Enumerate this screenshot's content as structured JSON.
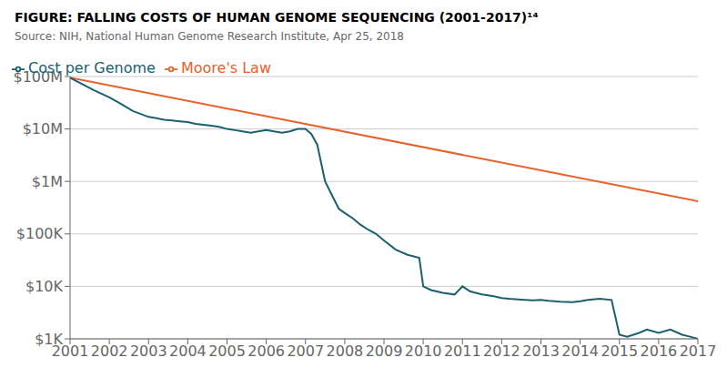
{
  "chart_data": {
    "type": "line",
    "title": "FIGURE: FALLING COSTS OF HUMAN GENOME SEQUENCING (2001-2017)¹⁴",
    "subtitle": "Source: NIH, National Human Genome Research Institute, Apr 25, 2018",
    "series": [
      {
        "name": "Moore's Law",
        "color": "#e8602c",
        "x": [
          2001,
          2017
        ],
        "values": [
          95000000,
          420000
        ]
      },
      {
        "name": "Cost per Genome",
        "color": "#1a6070",
        "x": [
          2001.0,
          2001.3,
          2001.6,
          2002.0,
          2002.3,
          2002.6,
          2003.0,
          2003.2,
          2003.4,
          2003.6,
          2003.8,
          2004.0,
          2004.2,
          2004.4,
          2004.6,
          2004.8,
          2005.0,
          2005.2,
          2005.4,
          2005.6,
          2005.8,
          2006.0,
          2006.2,
          2006.4,
          2006.6,
          2006.8,
          2007.0,
          2007.15,
          2007.3,
          2007.5,
          2007.7,
          2007.85,
          2008.0,
          2008.2,
          2008.4,
          2008.6,
          2008.8,
          2009.0,
          2009.3,
          2009.6,
          2009.9,
          2010.0,
          2010.2,
          2010.5,
          2010.8,
          2011.0,
          2011.2,
          2011.5,
          2011.8,
          2012.0,
          2012.2,
          2012.5,
          2012.8,
          2013.0,
          2013.2,
          2013.5,
          2013.8,
          2014.0,
          2014.2,
          2014.5,
          2014.8,
          2015.0,
          2015.2,
          2015.5,
          2015.7,
          2016.0,
          2016.3,
          2016.6,
          2016.8,
          2017.0
        ],
        "values": [
          95000000,
          72000000,
          55000000,
          40000000,
          30000000,
          22000000,
          17000000,
          16000000,
          15000000,
          14500000,
          14000000,
          13500000,
          12500000,
          12000000,
          11500000,
          11000000,
          10000000,
          9500000,
          9000000,
          8500000,
          9000000,
          9500000,
          9000000,
          8500000,
          9000000,
          10000000,
          10000000,
          8000000,
          5000000,
          1000000,
          500000,
          300000,
          250000,
          200000,
          150000,
          120000,
          100000,
          75000,
          50000,
          40000,
          35000,
          10000,
          8500,
          7500,
          7000,
          10000,
          8000,
          7000,
          6500,
          6000,
          5800,
          5600,
          5400,
          5500,
          5300,
          5100,
          5000,
          5200,
          5500,
          5800,
          5500,
          1200,
          1100,
          1300,
          1500,
          1300,
          1500,
          1200,
          1100,
          1000
        ]
      }
    ],
    "xlim": [
      2001,
      2017
    ],
    "ylim": [
      1000,
      100000000
    ],
    "xticks": [
      2001,
      2002,
      2003,
      2004,
      2005,
      2006,
      2007,
      2008,
      2009,
      2010,
      2011,
      2012,
      2013,
      2014,
      2015,
      2016,
      2017
    ],
    "yticks": [
      {
        "value": 1000,
        "label": "$1K"
      },
      {
        "value": 10000,
        "label": "$10K"
      },
      {
        "value": 100000,
        "label": "$100K"
      },
      {
        "value": 1000000,
        "label": "$1M"
      },
      {
        "value": 10000000,
        "label": "$10M"
      },
      {
        "value": 100000000,
        "label": "$100M"
      }
    ],
    "log": "y",
    "grid": "y",
    "legend": "top-left"
  }
}
